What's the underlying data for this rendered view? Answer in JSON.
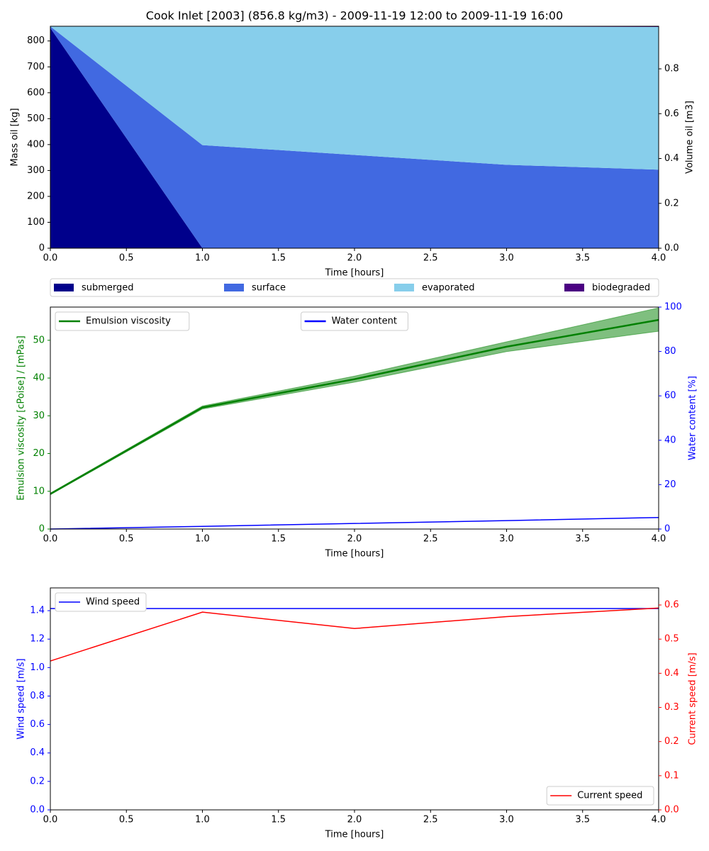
{
  "chart_data": [
    {
      "type": "stackedarea",
      "title": "Cook Inlet [2003] (856.8 kg/m3) - 2009-11-19 12:00 to 2009-11-19 16:00",
      "xlabel": "Time  [hours]",
      "ylabel": "Mass oil  [kg]",
      "y2label": "Volume oil [m3]",
      "x": [
        0,
        1,
        2,
        3,
        4
      ],
      "series": [
        {
          "name": "submerged",
          "color": "#00008b",
          "values": [
            850,
            0,
            0,
            0,
            0
          ]
        },
        {
          "name": "surface",
          "color": "#4169e1",
          "values": [
            6,
            398,
            360,
            322,
            303
          ]
        },
        {
          "name": "evaporated",
          "color": "#87ceeb",
          "values": [
            0,
            458,
            496,
            534,
            551
          ]
        },
        {
          "name": "biodegraded",
          "color": "#4b0082",
          "values": [
            0,
            0,
            0,
            1,
            3
          ]
        }
      ],
      "legend": "below",
      "xlim": [
        0,
        4
      ],
      "xticks": [
        {
          "value": 0,
          "label": "0.0"
        },
        {
          "value": 0.5,
          "label": "0.5"
        },
        {
          "value": 1,
          "label": "1.0"
        },
        {
          "value": 1.5,
          "label": "1.5"
        },
        {
          "value": 2,
          "label": "2.0"
        },
        {
          "value": 2.5,
          "label": "2.5"
        },
        {
          "value": 3,
          "label": "3.0"
        },
        {
          "value": 3.5,
          "label": "3.5"
        },
        {
          "value": 4,
          "label": "4.0"
        }
      ],
      "ylim": [
        0,
        856.8
      ],
      "yticks": [
        0,
        100,
        200,
        300,
        400,
        500,
        600,
        700,
        800
      ],
      "y2lim": [
        0,
        0.99
      ],
      "y2ticks": [
        {
          "value": 0,
          "label": "0.0"
        },
        {
          "value": 0.2,
          "label": "0.2"
        },
        {
          "value": 0.4,
          "label": "0.4"
        },
        {
          "value": 0.6,
          "label": "0.6"
        },
        {
          "value": 0.8,
          "label": "0.8"
        }
      ]
    },
    {
      "type": "line",
      "xlabel": "Time [hours]",
      "ylabel": "Emulsion viscosity  [cPoise] / [mPas]",
      "y2label": "Water content  [%]",
      "x": [
        0,
        1,
        2,
        3,
        4
      ],
      "series": [
        {
          "name": "Emulsion viscosity",
          "color": "#008000",
          "values": [
            9.3,
            32.2,
            39.7,
            48.3,
            55.4
          ],
          "band_low": [
            9.1,
            31.8,
            38.9,
            47.0,
            52.4
          ],
          "band_high": [
            9.5,
            32.6,
            40.5,
            49.6,
            58.6
          ],
          "legend_loc": "upper left"
        },
        {
          "name": "Water content",
          "color": "#0000ff",
          "axis": "y2",
          "values": [
            0,
            1.2,
            2.5,
            3.8,
            5.2
          ],
          "legend_loc": "upper center"
        }
      ],
      "xlim": [
        0,
        4
      ],
      "xticks": [
        {
          "value": 0,
          "label": "0.0"
        },
        {
          "value": 0.5,
          "label": "0.5"
        },
        {
          "value": 1,
          "label": "1.0"
        },
        {
          "value": 1.5,
          "label": "1.5"
        },
        {
          "value": 2,
          "label": "2.0"
        },
        {
          "value": 2.5,
          "label": "2.5"
        },
        {
          "value": 3,
          "label": "3.0"
        },
        {
          "value": 3.5,
          "label": "3.5"
        },
        {
          "value": 4,
          "label": "4.0"
        }
      ],
      "ylim": [
        0,
        58.8
      ],
      "yticks": [
        0,
        10,
        20,
        30,
        40,
        50
      ],
      "y2lim": [
        0,
        100
      ],
      "y2ticks": [
        0,
        20,
        40,
        60,
        80,
        100
      ]
    },
    {
      "type": "line",
      "xlabel": "Time  [hours]",
      "ylabel": "Wind speed  [m/s]",
      "y2label": "Current speed  [m/s]",
      "x": [
        0,
        1,
        2,
        3,
        4
      ],
      "series": [
        {
          "name": "Wind speed",
          "color": "#0000ff",
          "values": [
            1.415,
            1.415,
            1.415,
            1.415,
            1.415
          ],
          "legend_loc": "upper left"
        },
        {
          "name": "Current speed",
          "color": "#ff0000",
          "axis": "y2",
          "values": [
            0.436,
            0.579,
            0.531,
            0.566,
            0.591
          ],
          "legend_loc": "lower right"
        }
      ],
      "xlim": [
        0,
        4
      ],
      "xticks": [
        {
          "value": 0,
          "label": "0.0"
        },
        {
          "value": 0.5,
          "label": "0.5"
        },
        {
          "value": 1,
          "label": "1.0"
        },
        {
          "value": 1.5,
          "label": "1.5"
        },
        {
          "value": 2,
          "label": "2.0"
        },
        {
          "value": 2.5,
          "label": "2.5"
        },
        {
          "value": 3,
          "label": "3.0"
        },
        {
          "value": 3.5,
          "label": "3.5"
        },
        {
          "value": 4,
          "label": "4.0"
        }
      ],
      "ylim": [
        0,
        1.56
      ],
      "yticks": [
        {
          "value": 0,
          "label": "0.0"
        },
        {
          "value": 0.2,
          "label": "0.2"
        },
        {
          "value": 0.4,
          "label": "0.4"
        },
        {
          "value": 0.6,
          "label": "0.6"
        },
        {
          "value": 0.8,
          "label": "0.8"
        },
        {
          "value": 1,
          "label": "1.0"
        },
        {
          "value": 1.2,
          "label": "1.2"
        },
        {
          "value": 1.4,
          "label": "1.4"
        }
      ],
      "y2lim": [
        0,
        0.65
      ],
      "y2ticks": [
        {
          "value": 0,
          "label": "0.0"
        },
        {
          "value": 0.1,
          "label": "0.1"
        },
        {
          "value": 0.2,
          "label": "0.2"
        },
        {
          "value": 0.3,
          "label": "0.3"
        },
        {
          "value": 0.4,
          "label": "0.4"
        },
        {
          "value": 0.5,
          "label": "0.5"
        },
        {
          "value": 0.6,
          "label": "0.6"
        }
      ]
    }
  ]
}
